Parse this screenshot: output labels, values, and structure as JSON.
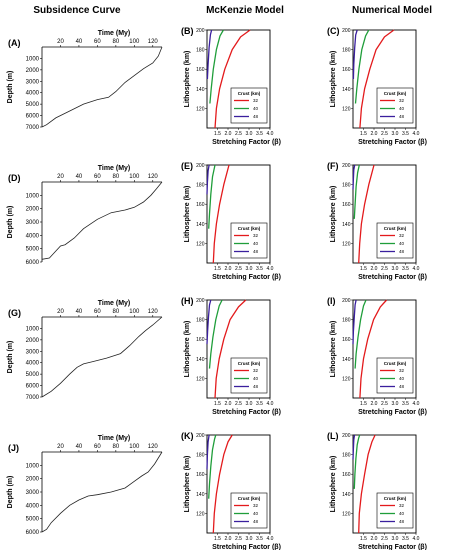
{
  "columns": [
    "Subsidence Curve",
    "McKenzie Model",
    "Numerical Model"
  ],
  "legend": {
    "title": "Crust (km)",
    "entries": [
      "32",
      "40",
      "48"
    ]
  },
  "colors": {
    "crust32": "#e31a1c",
    "crust40": "#1f9e3a",
    "crust48": "#3a1f9e"
  },
  "chart_data": [
    {
      "type": "line",
      "panel": "(A)",
      "title": "Subsidence Curve",
      "xlabel": "Time (My)",
      "ylabel": "Depth (m)",
      "xlim": [
        0,
        130
      ],
      "ylim": [
        0,
        7000
      ],
      "x_ticks": [
        20,
        40,
        60,
        80,
        100,
        120
      ],
      "y_ticks": [
        1000,
        2000,
        3000,
        4000,
        5000,
        6000,
        7000
      ],
      "series": [
        {
          "x": [
            0,
            5,
            15,
            30,
            45,
            60,
            72,
            80,
            90,
            100,
            110,
            120,
            126,
            130
          ],
          "y": [
            7000,
            6800,
            6200,
            5600,
            5000,
            4600,
            4400,
            3900,
            3100,
            2500,
            1900,
            1400,
            800,
            0
          ]
        }
      ]
    },
    {
      "type": "line",
      "panel": "(B)",
      "title": "McKenzie Model",
      "xlabel": "Stretching Factor (β)",
      "ylabel": "Lithosphere (km)",
      "xlim": [
        1,
        4
      ],
      "ylim": [
        100,
        200
      ],
      "x_ticks": [
        "1.5",
        "2.0",
        "2.5",
        "3.0",
        "3.5",
        "4.0"
      ],
      "y_ticks": [
        120,
        140,
        160,
        180,
        200
      ],
      "legend_title": "Crust (km)",
      "series": [
        {
          "name": "32",
          "x": [
            1.38,
            1.45,
            1.6,
            1.85,
            2.2,
            2.6,
            3.05
          ],
          "y": [
            100,
            120,
            140,
            160,
            180,
            193,
            200
          ]
        },
        {
          "name": "40",
          "x": [
            1.14,
            1.2,
            1.3,
            1.45,
            1.62,
            1.78
          ],
          "y": [
            125,
            140,
            160,
            180,
            194,
            200
          ]
        },
        {
          "name": "48",
          "x": [
            1.02,
            1.05,
            1.1,
            1.16,
            1.22
          ],
          "y": [
            150,
            165,
            182,
            195,
            200
          ]
        }
      ]
    },
    {
      "type": "line",
      "panel": "(C)",
      "title": "Numerical Model",
      "xlabel": "Stretching Factor (β)",
      "ylabel": "Lithosphere (km)",
      "xlim": [
        1,
        4
      ],
      "ylim": [
        100,
        200
      ],
      "x_ticks": [
        "1.5",
        "2.0",
        "2.5",
        "3.0",
        "3.5",
        "4.0"
      ],
      "y_ticks": [
        120,
        140,
        160,
        180,
        200
      ],
      "legend_title": "Crust (km)",
      "series": [
        {
          "name": "32",
          "x": [
            1.33,
            1.4,
            1.55,
            1.8,
            2.1,
            2.5,
            2.95
          ],
          "y": [
            100,
            120,
            140,
            160,
            180,
            193,
            200
          ]
        },
        {
          "name": "40",
          "x": [
            1.12,
            1.18,
            1.28,
            1.42,
            1.6,
            1.75
          ],
          "y": [
            125,
            140,
            160,
            180,
            194,
            200
          ]
        },
        {
          "name": "48",
          "x": [
            1.02,
            1.04,
            1.08,
            1.13,
            1.2
          ],
          "y": [
            150,
            165,
            182,
            195,
            200
          ]
        }
      ]
    },
    {
      "type": "line",
      "panel": "(D)",
      "title": "",
      "xlabel": "Time (My)",
      "ylabel": "Depth (m)",
      "xlim": [
        0,
        130
      ],
      "ylim": [
        0,
        6000
      ],
      "x_ticks": [
        20,
        40,
        60,
        80,
        100,
        120
      ],
      "y_ticks": [
        1000,
        2000,
        3000,
        4000,
        5000,
        6000
      ],
      "series": [
        {
          "x": [
            0,
            8,
            12,
            20,
            25,
            35,
            45,
            60,
            75,
            90,
            100,
            110,
            118,
            124,
            130
          ],
          "y": [
            5800,
            5700,
            5400,
            4800,
            4700,
            4200,
            3500,
            2800,
            2300,
            2100,
            1900,
            1500,
            1000,
            500,
            0
          ]
        }
      ]
    },
    {
      "type": "line",
      "panel": "(E)",
      "title": "",
      "xlabel": "Stretching Factor (β)",
      "ylabel": "Lithosphere (km)",
      "xlim": [
        1,
        4
      ],
      "ylim": [
        100,
        200
      ],
      "x_ticks": [
        "1.5",
        "2.0",
        "2.5",
        "3.0",
        "3.5",
        "4.0"
      ],
      "y_ticks": [
        120,
        140,
        160,
        180,
        200
      ],
      "legend_title": "Crust (km)",
      "series": [
        {
          "name": "32",
          "x": [
            1.3,
            1.35,
            1.45,
            1.6,
            1.8,
            2.05
          ],
          "y": [
            100,
            120,
            140,
            160,
            180,
            200
          ]
        },
        {
          "name": "40",
          "x": [
            1.08,
            1.12,
            1.18,
            1.26,
            1.38
          ],
          "y": [
            135,
            150,
            170,
            188,
            200
          ]
        },
        {
          "name": "48",
          "x": [
            1.0,
            1.02,
            1.05,
            1.1
          ],
          "y": [
            170,
            182,
            194,
            200
          ]
        }
      ]
    },
    {
      "type": "line",
      "panel": "(F)",
      "title": "",
      "xlabel": "Stretching Factor (β)",
      "ylabel": "Lithosphere (km)",
      "xlim": [
        1,
        4
      ],
      "ylim": [
        100,
        200
      ],
      "x_ticks": [
        "1.5",
        "2.0",
        "2.5",
        "3.0",
        "3.5",
        "4.0"
      ],
      "y_ticks": [
        120,
        140,
        160,
        180,
        200
      ],
      "legend_title": "Crust (km)",
      "series": [
        {
          "name": "32",
          "x": [
            1.27,
            1.32,
            1.4,
            1.55,
            1.75,
            2.0
          ],
          "y": [
            100,
            120,
            140,
            160,
            180,
            200
          ]
        },
        {
          "name": "40",
          "x": [
            1.06,
            1.1,
            1.15,
            1.22,
            1.3
          ],
          "y": [
            145,
            160,
            178,
            192,
            200
          ]
        },
        {
          "name": "48",
          "x": [
            1.0,
            1.02,
            1.04,
            1.08
          ],
          "y": [
            175,
            186,
            195,
            200
          ]
        }
      ]
    },
    {
      "type": "line",
      "panel": "(G)",
      "title": "",
      "xlabel": "Time (My)",
      "ylabel": "Depth (m)",
      "xlim": [
        0,
        130
      ],
      "ylim": [
        0,
        7000
      ],
      "x_ticks": [
        20,
        40,
        60,
        80,
        100,
        120
      ],
      "y_ticks": [
        1000,
        2000,
        3000,
        4000,
        5000,
        6000,
        7000
      ],
      "series": [
        {
          "x": [
            0,
            10,
            20,
            30,
            38,
            45,
            55,
            70,
            85,
            95,
            105,
            112,
            120,
            130
          ],
          "y": [
            7000,
            6500,
            5800,
            5000,
            4400,
            4100,
            3900,
            3600,
            3200,
            2500,
            1700,
            1200,
            700,
            0
          ]
        }
      ]
    },
    {
      "type": "line",
      "panel": "(H)",
      "title": "",
      "xlabel": "Stretching Factor (β)",
      "ylabel": "Lithosphere (km)",
      "xlim": [
        1,
        4
      ],
      "ylim": [
        100,
        200
      ],
      "x_ticks": [
        "1.5",
        "2.0",
        "2.5",
        "3.0",
        "3.5",
        "4.0"
      ],
      "y_ticks": [
        120,
        140,
        160,
        180,
        200
      ],
      "legend_title": "Crust (km)",
      "series": [
        {
          "name": "32",
          "x": [
            1.38,
            1.44,
            1.58,
            1.8,
            2.1,
            2.5,
            2.85
          ],
          "y": [
            100,
            120,
            140,
            160,
            180,
            193,
            200
          ]
        },
        {
          "name": "40",
          "x": [
            1.12,
            1.18,
            1.28,
            1.42,
            1.58,
            1.72
          ],
          "y": [
            130,
            145,
            162,
            180,
            194,
            200
          ]
        },
        {
          "name": "48",
          "x": [
            1.0,
            1.03,
            1.07,
            1.12,
            1.18
          ],
          "y": [
            155,
            168,
            183,
            195,
            200
          ]
        }
      ]
    },
    {
      "type": "line",
      "panel": "(I)",
      "title": "",
      "xlabel": "Stretching Factor (β)",
      "ylabel": "Lithosphere (km)",
      "xlim": [
        1,
        4
      ],
      "ylim": [
        100,
        200
      ],
      "x_ticks": [
        "1.5",
        "2.0",
        "2.5",
        "3.0",
        "3.5",
        "4.0"
      ],
      "y_ticks": [
        120,
        140,
        160,
        180,
        200
      ],
      "legend_title": "Crust (km)",
      "series": [
        {
          "name": "32",
          "x": [
            1.33,
            1.38,
            1.5,
            1.7,
            1.98,
            2.3,
            2.6
          ],
          "y": [
            100,
            120,
            140,
            160,
            180,
            193,
            200
          ]
        },
        {
          "name": "40",
          "x": [
            1.1,
            1.15,
            1.24,
            1.36,
            1.5,
            1.62
          ],
          "y": [
            130,
            145,
            162,
            180,
            194,
            200
          ]
        },
        {
          "name": "48",
          "x": [
            1.0,
            1.02,
            1.06,
            1.1,
            1.15
          ],
          "y": [
            155,
            168,
            183,
            195,
            200
          ]
        }
      ]
    },
    {
      "type": "line",
      "panel": "(J)",
      "title": "",
      "xlabel": "Time (My)",
      "ylabel": "Depth (m)",
      "xlim": [
        0,
        130
      ],
      "ylim": [
        0,
        6000
      ],
      "x_ticks": [
        20,
        40,
        60,
        80,
        100,
        120
      ],
      "y_ticks": [
        1000,
        2000,
        3000,
        4000,
        5000,
        6000
      ],
      "series": [
        {
          "x": [
            0,
            5,
            10,
            20,
            30,
            40,
            50,
            60,
            75,
            90,
            100,
            108,
            115,
            122,
            130
          ],
          "y": [
            6000,
            5800,
            5300,
            4600,
            4000,
            3600,
            3300,
            3200,
            3000,
            2700,
            2200,
            1800,
            1500,
            900,
            0
          ]
        }
      ]
    },
    {
      "type": "line",
      "panel": "(K)",
      "title": "",
      "xlabel": "Stretching Factor (β)",
      "ylabel": "Lithosphere (km)",
      "xlim": [
        1,
        4
      ],
      "ylim": [
        100,
        200
      ],
      "x_ticks": [
        "1.5",
        "2.0",
        "2.5",
        "3.0",
        "3.5",
        "4.0"
      ],
      "y_ticks": [
        120,
        140,
        160,
        180,
        200
      ],
      "legend_title": "Crust (km)",
      "series": [
        {
          "name": "32",
          "x": [
            1.3,
            1.35,
            1.45,
            1.6,
            1.8,
            2.0,
            2.2
          ],
          "y": [
            100,
            120,
            140,
            160,
            180,
            193,
            200
          ]
        },
        {
          "name": "40",
          "x": [
            1.08,
            1.12,
            1.18,
            1.26,
            1.36,
            1.42
          ],
          "y": [
            135,
            150,
            168,
            185,
            196,
            200
          ]
        },
        {
          "name": "48",
          "x": [
            1.0,
            1.02,
            1.05,
            1.1
          ],
          "y": [
            165,
            180,
            193,
            200
          ]
        }
      ]
    },
    {
      "type": "line",
      "panel": "(L)",
      "title": "",
      "xlabel": "Stretching Factor (β)",
      "ylabel": "Lithosphere (km)",
      "xlim": [
        1,
        4
      ],
      "ylim": [
        100,
        200
      ],
      "x_ticks": [
        "1.5",
        "2.0",
        "2.5",
        "3.0",
        "3.5",
        "4.0"
      ],
      "y_ticks": [
        120,
        140,
        160,
        180,
        200
      ],
      "legend_title": "Crust (km)",
      "series": [
        {
          "name": "32",
          "x": [
            1.27,
            1.3,
            1.4,
            1.55,
            1.72,
            1.9,
            2.05
          ],
          "y": [
            100,
            120,
            140,
            160,
            180,
            193,
            200
          ]
        },
        {
          "name": "40",
          "x": [
            1.06,
            1.09,
            1.14,
            1.2,
            1.27,
            1.32
          ],
          "y": [
            145,
            160,
            176,
            190,
            197,
            200
          ]
        },
        {
          "name": "48",
          "x": [
            1.0,
            1.02,
            1.04,
            1.07
          ],
          "y": [
            175,
            186,
            195,
            200
          ]
        }
      ]
    }
  ]
}
